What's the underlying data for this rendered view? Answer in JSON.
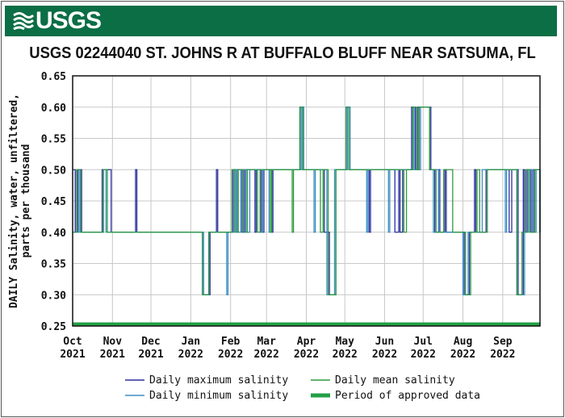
{
  "header": {
    "logo_text": "USGS"
  },
  "chart_data": {
    "type": "line",
    "title": "USGS 02244040 ST. JOHNS R AT BUFFALO BLUFF NEAR SATSUMA, FL",
    "ylabel_lines": [
      "DAILY Salinity, water, unfiltered,",
      "parts per thousand"
    ],
    "xlabel": "",
    "xlim": [
      "2021-10-01",
      "2022-09-30"
    ],
    "ylim": [
      0.25,
      0.65
    ],
    "y_ticks": [
      "0.25",
      "0.30",
      "0.35",
      "0.40",
      "0.45",
      "0.50",
      "0.55",
      "0.60",
      "0.65"
    ],
    "x_ticks": [
      {
        "date": "2021-10-01",
        "month": "Oct",
        "year": "2021"
      },
      {
        "date": "2021-11-01",
        "month": "Nov",
        "year": "2021"
      },
      {
        "date": "2021-12-01",
        "month": "Dec",
        "year": "2021"
      },
      {
        "date": "2022-01-01",
        "month": "Jan",
        "year": "2022"
      },
      {
        "date": "2022-02-01",
        "month": "Feb",
        "year": "2022"
      },
      {
        "date": "2022-03-01",
        "month": "Mar",
        "year": "2022"
      },
      {
        "date": "2022-04-01",
        "month": "Apr",
        "year": "2022"
      },
      {
        "date": "2022-05-01",
        "month": "May",
        "year": "2022"
      },
      {
        "date": "2022-06-01",
        "month": "Jun",
        "year": "2022"
      },
      {
        "date": "2022-07-01",
        "month": "Jul",
        "year": "2022"
      },
      {
        "date": "2022-08-01",
        "month": "Aug",
        "year": "2022"
      },
      {
        "date": "2022-09-01",
        "month": "Sep",
        "year": "2022"
      }
    ],
    "grid": true,
    "legend_position": "bottom",
    "series": [
      {
        "name": "Daily maximum salinity",
        "color": "#2a2f9c",
        "steps": [
          [
            "2021-10-01",
            0.5
          ],
          [
            "2021-10-03",
            0.4
          ],
          [
            "2021-10-05",
            0.5
          ],
          [
            "2021-10-08",
            0.4
          ],
          [
            "2021-10-24",
            0.5
          ],
          [
            "2021-10-31",
            0.4
          ],
          [
            "2021-11-19",
            0.5
          ],
          [
            "2021-11-20",
            0.4
          ],
          [
            "2022-01-10",
            0.35
          ],
          [
            "2022-01-11",
            0.3
          ],
          [
            "2022-01-16",
            0.4
          ],
          [
            "2022-01-21",
            0.5
          ],
          [
            "2022-01-22",
            0.4
          ],
          [
            "2022-02-03",
            0.5
          ],
          [
            "2022-02-05",
            0.4
          ],
          [
            "2022-02-06",
            0.5
          ],
          [
            "2022-02-10",
            0.4
          ],
          [
            "2022-02-12",
            0.5
          ],
          [
            "2022-02-20",
            0.4
          ],
          [
            "2022-02-21",
            0.5
          ],
          [
            "2022-02-25",
            0.4
          ],
          [
            "2022-02-27",
            0.5
          ],
          [
            "2022-03-05",
            0.4
          ],
          [
            "2022-03-06",
            0.5
          ],
          [
            "2022-03-27",
            0.6
          ],
          [
            "2022-03-30",
            0.5
          ],
          [
            "2022-04-15",
            0.4
          ],
          [
            "2022-04-19",
            0.3
          ],
          [
            "2022-04-24",
            0.5
          ],
          [
            "2022-05-02",
            0.6
          ],
          [
            "2022-05-05",
            0.5
          ],
          [
            "2022-05-20",
            0.4
          ],
          [
            "2022-05-21",
            0.5
          ],
          [
            "2022-06-09",
            0.4
          ],
          [
            "2022-06-12",
            0.5
          ],
          [
            "2022-06-13",
            0.4
          ],
          [
            "2022-06-15",
            0.5
          ],
          [
            "2022-06-22",
            0.6
          ],
          [
            "2022-06-25",
            0.5
          ],
          [
            "2022-06-27",
            0.6
          ],
          [
            "2022-07-07",
            0.5
          ],
          [
            "2022-07-10",
            0.4
          ],
          [
            "2022-07-13",
            0.5
          ],
          [
            "2022-07-14",
            0.4
          ],
          [
            "2022-07-18",
            0.5
          ],
          [
            "2022-07-19",
            0.4
          ],
          [
            "2022-08-02",
            0.3
          ],
          [
            "2022-08-06",
            0.4
          ],
          [
            "2022-08-10",
            0.5
          ],
          [
            "2022-08-11",
            0.4
          ],
          [
            "2022-08-19",
            0.5
          ],
          [
            "2022-09-06",
            0.4
          ],
          [
            "2022-09-08",
            0.5
          ],
          [
            "2022-09-13",
            0.3
          ],
          [
            "2022-09-17",
            0.5
          ],
          [
            "2022-09-18",
            0.4
          ],
          [
            "2022-09-20",
            0.5
          ],
          [
            "2022-09-23",
            0.4
          ],
          [
            "2022-09-25",
            0.5
          ],
          [
            "2022-09-30",
            0.4
          ]
        ]
      },
      {
        "name": "Daily minimum salinity",
        "color": "#3b8fc4",
        "steps": [
          [
            "2021-10-01",
            0.4
          ],
          [
            "2021-10-06",
            0.5
          ],
          [
            "2021-10-07",
            0.4
          ],
          [
            "2021-10-25",
            0.5
          ],
          [
            "2021-10-27",
            0.4
          ],
          [
            "2022-01-11",
            0.3
          ],
          [
            "2022-01-15",
            0.4
          ],
          [
            "2022-01-29",
            0.3
          ],
          [
            "2022-01-30",
            0.4
          ],
          [
            "2022-02-04",
            0.5
          ],
          [
            "2022-02-06",
            0.4
          ],
          [
            "2022-02-09",
            0.5
          ],
          [
            "2022-02-13",
            0.4
          ],
          [
            "2022-02-16",
            0.5
          ],
          [
            "2022-02-24",
            0.4
          ],
          [
            "2022-02-26",
            0.5
          ],
          [
            "2022-03-03",
            0.4
          ],
          [
            "2022-03-05",
            0.5
          ],
          [
            "2022-03-28",
            0.6
          ],
          [
            "2022-03-30",
            0.5
          ],
          [
            "2022-04-07",
            0.4
          ],
          [
            "2022-04-08",
            0.5
          ],
          [
            "2022-04-17",
            0.3
          ],
          [
            "2022-04-23",
            0.5
          ],
          [
            "2022-05-03",
            0.6
          ],
          [
            "2022-05-05",
            0.5
          ],
          [
            "2022-05-18",
            0.4
          ],
          [
            "2022-05-19",
            0.5
          ],
          [
            "2022-06-04",
            0.4
          ],
          [
            "2022-06-05",
            0.5
          ],
          [
            "2022-06-23",
            0.6
          ],
          [
            "2022-06-24",
            0.5
          ],
          [
            "2022-06-29",
            0.6
          ],
          [
            "2022-07-06",
            0.5
          ],
          [
            "2022-07-09",
            0.4
          ],
          [
            "2022-07-11",
            0.5
          ],
          [
            "2022-07-13",
            0.4
          ],
          [
            "2022-08-01",
            0.3
          ],
          [
            "2022-08-05",
            0.4
          ],
          [
            "2022-08-16",
            0.5
          ],
          [
            "2022-09-03",
            0.4
          ],
          [
            "2022-09-04",
            0.5
          ],
          [
            "2022-09-12",
            0.3
          ],
          [
            "2022-09-18",
            0.4
          ],
          [
            "2022-09-21",
            0.5
          ],
          [
            "2022-09-24",
            0.4
          ],
          [
            "2022-09-27",
            0.5
          ],
          [
            "2022-09-30",
            0.4
          ]
        ]
      },
      {
        "name": "Daily mean salinity",
        "color": "#2e9a3c",
        "steps": [
          [
            "2021-10-01",
            0.4
          ],
          [
            "2021-10-04",
            0.5
          ],
          [
            "2021-10-07",
            0.4
          ],
          [
            "2021-10-25",
            0.5
          ],
          [
            "2021-10-28",
            0.4
          ],
          [
            "2022-01-10",
            0.3
          ],
          [
            "2022-01-15",
            0.4
          ],
          [
            "2022-02-02",
            0.5
          ],
          [
            "2022-02-05",
            0.4
          ],
          [
            "2022-02-07",
            0.5
          ],
          [
            "2022-02-11",
            0.4
          ],
          [
            "2022-02-14",
            0.5
          ],
          [
            "2022-02-22",
            0.4
          ],
          [
            "2022-02-24",
            0.5
          ],
          [
            "2022-03-04",
            0.4
          ],
          [
            "2022-03-05",
            0.5
          ],
          [
            "2022-03-21",
            0.4
          ],
          [
            "2022-03-22",
            0.5
          ],
          [
            "2022-03-27",
            0.6
          ],
          [
            "2022-03-29",
            0.5
          ],
          [
            "2022-04-12",
            0.4
          ],
          [
            "2022-04-14",
            0.5
          ],
          [
            "2022-04-18",
            0.3
          ],
          [
            "2022-04-24",
            0.5
          ],
          [
            "2022-05-02",
            0.6
          ],
          [
            "2022-05-04",
            0.5
          ],
          [
            "2022-06-16",
            0.4
          ],
          [
            "2022-06-18",
            0.5
          ],
          [
            "2022-06-23",
            0.6
          ],
          [
            "2022-06-26",
            0.5
          ],
          [
            "2022-06-28",
            0.6
          ],
          [
            "2022-07-06",
            0.5
          ],
          [
            "2022-07-11",
            0.4
          ],
          [
            "2022-07-17",
            0.5
          ],
          [
            "2022-07-24",
            0.4
          ],
          [
            "2022-08-03",
            0.3
          ],
          [
            "2022-08-07",
            0.4
          ],
          [
            "2022-08-12",
            0.5
          ],
          [
            "2022-08-14",
            0.4
          ],
          [
            "2022-08-20",
            0.5
          ],
          [
            "2022-09-12",
            0.3
          ],
          [
            "2022-09-16",
            0.4
          ],
          [
            "2022-09-19",
            0.5
          ],
          [
            "2022-09-22",
            0.4
          ],
          [
            "2022-09-26",
            0.5
          ],
          [
            "2022-09-30",
            0.4
          ]
        ]
      }
    ],
    "approved_period": {
      "name": "Period of approved data",
      "color": "#22a045",
      "start": "2021-10-01",
      "end": "2022-09-30",
      "value": 0.25
    },
    "legend": [
      {
        "label": "Daily maximum salinity",
        "color": "#2a2f9c"
      },
      {
        "label": "Daily mean salinity",
        "color": "#2e9a3c"
      },
      {
        "label": "Daily minimum salinity",
        "color": "#3b8fc4"
      },
      {
        "label": "Period of approved data",
        "color": "#22a045"
      }
    ]
  }
}
